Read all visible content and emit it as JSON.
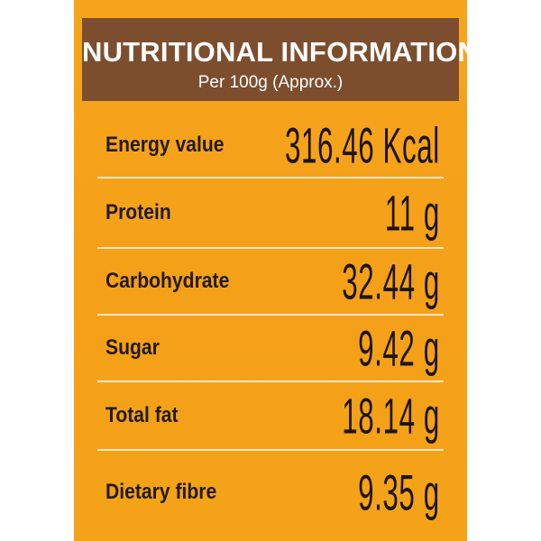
{
  "header": {
    "title": "NUTRITIONAL INFORMATION",
    "subtitle": "Per 100g (Approx.)"
  },
  "rows": [
    {
      "label": "Energy value",
      "value": "316.46 Kcal"
    },
    {
      "label": "Protein",
      "value": "11 g"
    },
    {
      "label": "Carbohydrate",
      "value": "32.44 g"
    },
    {
      "label": "Sugar",
      "value": "9.42 g"
    },
    {
      "label": "Total fat",
      "value": "18.14 g"
    },
    {
      "label": "Dietary fibre",
      "value": "9.35 g"
    }
  ],
  "colors": {
    "panel_background": "#f5a21b",
    "header_background": "#7d4e2e",
    "divider": "#fbe8c4",
    "text_dark": "#241a12"
  }
}
